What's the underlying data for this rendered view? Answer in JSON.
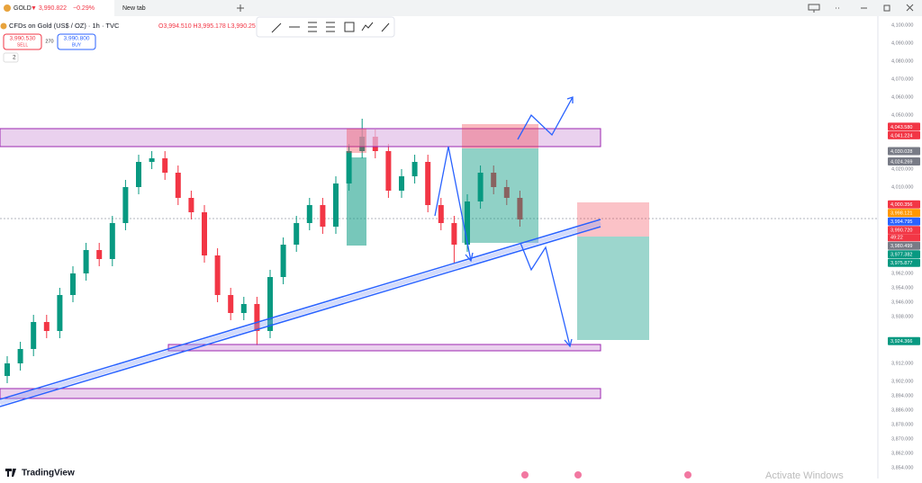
{
  "browser": {
    "tab_symbol": "GOLD",
    "tab_price": "▼ 3,990.822",
    "tab_change": "−0.29%",
    "new_tab": "New tab"
  },
  "header": {
    "instrument": "CFDs on Gold (US$ / OZ) · 1h · TVC",
    "ohlc": "O3,994.510 H3,995.178 L3,990.25",
    "sell_price": "3,990.530",
    "sell": "SELL",
    "spread": "270",
    "buy_price": "3,990.800",
    "buy": "BUY",
    "indicators": "2"
  },
  "footer": {
    "logo": "TradingView",
    "watermark": "Activate Windows"
  },
  "chart_data": {
    "type": "candlestick",
    "up_color": "#089981",
    "down_color": "#f23645",
    "grid": false,
    "open": [
      3905,
      3912,
      3920,
      3935,
      3930,
      3950,
      3962,
      3975,
      3970,
      3990,
      4010,
      4024,
      4026,
      4018,
      4004,
      3996,
      3972,
      3950,
      3940,
      3945,
      3930,
      3960,
      3978,
      3990,
      4000,
      3988,
      4012,
      4030,
      4038,
      4030,
      4008,
      4016,
      4024,
      4000,
      3990,
      3978,
      4002,
      4018,
      4010,
      4004
    ],
    "high": [
      3916,
      3924,
      3939,
      3939,
      3954,
      3966,
      3979,
      3979,
      3994,
      4014,
      4028,
      4030,
      4030,
      4022,
      4008,
      4000,
      3976,
      3954,
      3949,
      3949,
      3964,
      3982,
      3994,
      4004,
      4004,
      4016,
      4034,
      4048,
      4042,
      4034,
      4020,
      4028,
      4028,
      4004,
      3994,
      4006,
      4022,
      4022,
      4014,
      4008
    ],
    "low": [
      3901,
      3908,
      3916,
      3926,
      3926,
      3946,
      3958,
      3966,
      3966,
      3986,
      4006,
      4020,
      4014,
      4000,
      3992,
      3968,
      3946,
      3936,
      3936,
      3922,
      3926,
      3956,
      3974,
      3986,
      3984,
      3984,
      4008,
      4026,
      4026,
      4004,
      4004,
      4012,
      3996,
      3986,
      3968,
      3974,
      3998,
      4006,
      4000,
      3988
    ],
    "close": [
      3912,
      3920,
      3935,
      3930,
      3950,
      3962,
      3975,
      3970,
      3990,
      4010,
      4024,
      4026,
      4018,
      4004,
      3996,
      3972,
      3950,
      3940,
      3945,
      3930,
      3960,
      3978,
      3990,
      4000,
      3988,
      4012,
      4030,
      4038,
      4030,
      4008,
      4016,
      4024,
      4000,
      3990,
      3978,
      4002,
      4018,
      4010,
      4004,
      3992
    ],
    "ylim": [
      3848,
      4105
    ],
    "yticks": [
      {
        "value": 4100,
        "label": "4,100.000"
      },
      {
        "value": 4090,
        "label": "4,090.000"
      },
      {
        "value": 4080,
        "label": "4,080.000"
      },
      {
        "value": 4070,
        "label": "4,070.000"
      },
      {
        "value": 4060,
        "label": "4,060.000"
      },
      {
        "value": 4050,
        "label": "4,050.000"
      },
      {
        "value": 4020,
        "label": "4,020.000"
      },
      {
        "value": 4010,
        "label": "4,010.000"
      },
      {
        "value": 3962,
        "label": "3,962.000"
      },
      {
        "value": 3954,
        "label": "3,954.000"
      },
      {
        "value": 3946,
        "label": "3,946.000"
      },
      {
        "value": 3938,
        "label": "3,938.000"
      },
      {
        "value": 3912,
        "label": "3,912.000"
      },
      {
        "value": 3902,
        "label": "3,902.000"
      },
      {
        "value": 3894,
        "label": "3,894.000"
      },
      {
        "value": 3886,
        "label": "3,886.000"
      },
      {
        "value": 3878,
        "label": "3,878.000"
      },
      {
        "value": 3870,
        "label": "3,870.000"
      },
      {
        "value": 3862,
        "label": "3,862.000"
      },
      {
        "value": 3854,
        "label": "3,854.000"
      }
    ],
    "price_labels": [
      {
        "value": 4043.58,
        "label": "4,043.580",
        "color": "#f23645"
      },
      {
        "value": 4041.224,
        "label": "4,041.224",
        "color": "#f23645"
      },
      {
        "value": 4030.028,
        "label": "4,030.028",
        "color": "#787b86"
      },
      {
        "value": 4024.269,
        "label": "4,024.269",
        "color": "#787b86"
      },
      {
        "value": 4000.356,
        "label": "4,000.356",
        "color": "#f23645"
      },
      {
        "value": 3998.121,
        "label": "3,998.121",
        "color": "#ff9800"
      },
      {
        "value": 3994.795,
        "label": "3,994.795",
        "color": "#2962ff"
      },
      {
        "value": 3990.72,
        "label": "3,990.720",
        "color": "#f23645"
      },
      {
        "value": 3980.499,
        "label": "3,980.499",
        "color": "#787b86"
      },
      {
        "value": 3977.382,
        "label": "3,977.382",
        "color": "#089981"
      },
      {
        "value": 3975.877,
        "label": "3,975.877",
        "color": "#089981"
      },
      {
        "value": 3924.366,
        "label": "3,924.366",
        "color": "#089981"
      }
    ],
    "countdown": "49:22"
  }
}
